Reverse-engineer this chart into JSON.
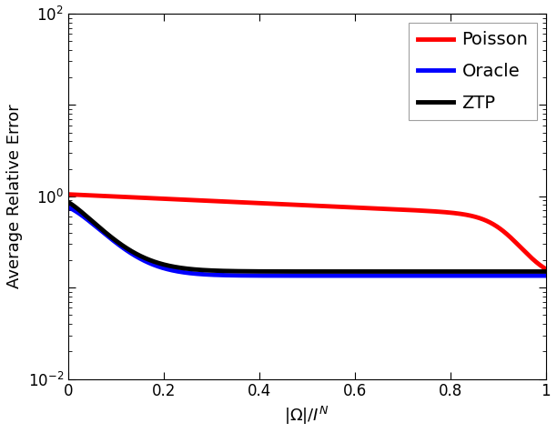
{
  "title": "",
  "xlabel": "$|\\Omega|/I^N$",
  "ylabel": "Average Relative Error",
  "xlim": [
    0,
    1
  ],
  "ylim": [
    0.01,
    100
  ],
  "legend": [
    "Poisson",
    "Oracle",
    "ZTP"
  ],
  "colors": {
    "Poisson": "#ff0000",
    "Oracle": "#0000ff",
    "ZTP": "#000000"
  },
  "linewidth": 3.5,
  "xticks": [
    0,
    0.2,
    0.4,
    0.6,
    0.8,
    1.0
  ],
  "figsize": [
    6.12,
    4.76
  ],
  "dpi": 100,
  "legend_fontsize": 14,
  "axis_fontsize": 13,
  "tick_fontsize": 12
}
